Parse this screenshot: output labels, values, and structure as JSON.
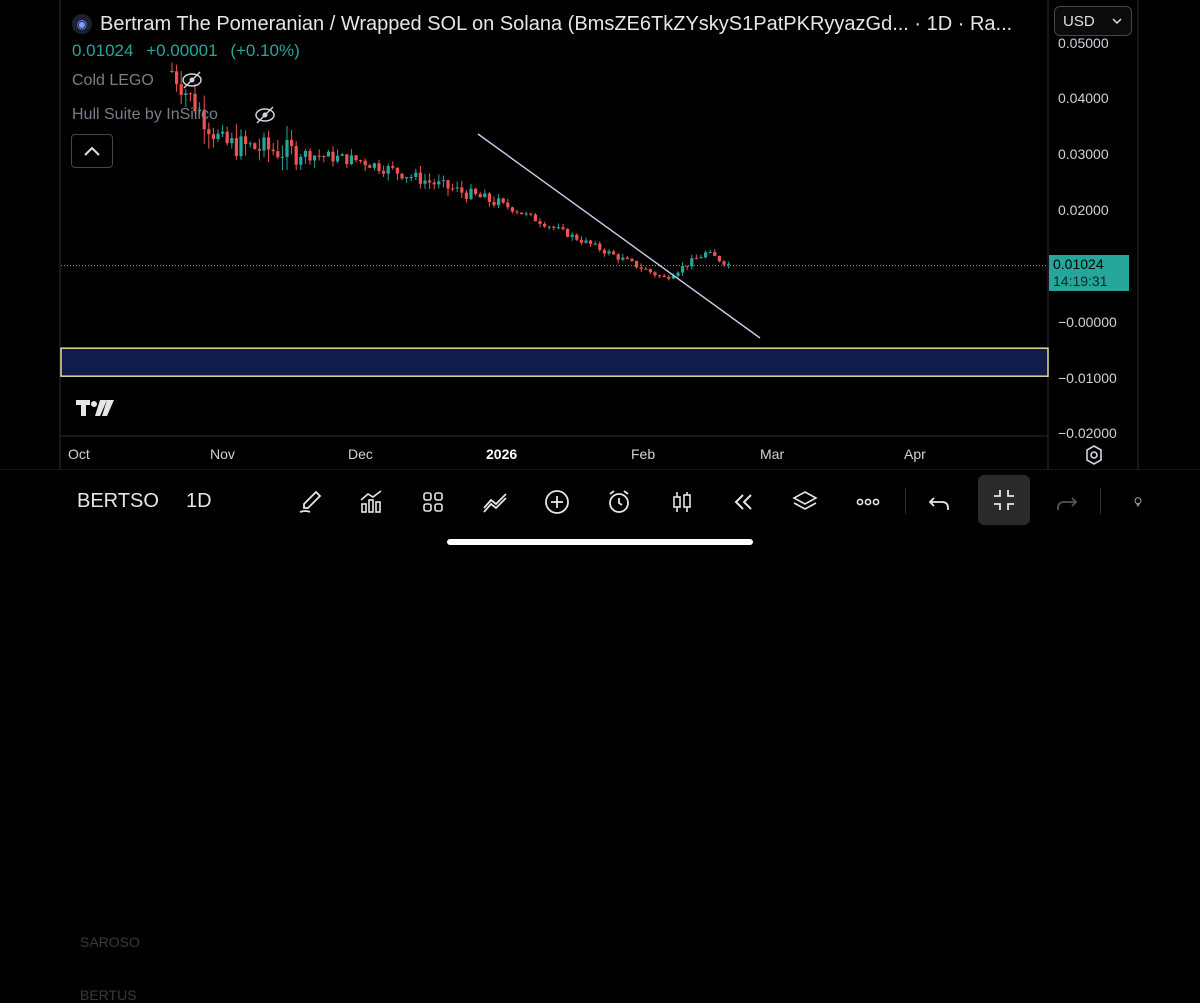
{
  "header": {
    "title": "Bertram The Pomeranian / Wrapped SOL on Solana (BmsZE6TkZYskyS1PatPKRyyazGd... · 1D · Ra...",
    "price": "0.01024",
    "change": "+0.00001",
    "change_pct": "(+0.10%)",
    "currency": "USD"
  },
  "indicators": [
    {
      "label": "Cold LEGO"
    },
    {
      "label": "Hull Suite by InSilico"
    }
  ],
  "price_axis": {
    "ticks": [
      "0.05000",
      "0.04000",
      "0.03000",
      "0.02000",
      "−0.00000",
      "−0.01000",
      "−0.02000"
    ],
    "current_price": "0.01024",
    "countdown": "14:19:31"
  },
  "time_axis": {
    "ticks": [
      "Oct",
      "Nov",
      "Dec",
      "2026",
      "Feb",
      "Mar",
      "Apr"
    ]
  },
  "toolbar": {
    "symbol": "BERTSO",
    "interval": "1D",
    "ghost_above": "SAROSO",
    "ghost_below": "BERTUS"
  },
  "colors": {
    "up": "#26a69a",
    "down": "#ef5350",
    "zone_fill": "#101c4c",
    "zone_border": "#e8d98a",
    "trendline": "#c9cde8"
  },
  "icons": [
    "eye-slash-icon",
    "chevron-up-icon",
    "chevron-down-icon",
    "tradingview-logo-icon",
    "settings-icon",
    "brush-icon",
    "chart-icon",
    "grid-icon",
    "indicator-icon",
    "plus-circle-icon",
    "alarm-icon",
    "candles-icon",
    "rewind-icon",
    "layers-icon",
    "more-icon",
    "undo-icon",
    "collapse-icon",
    "redo-icon",
    "lightbulb-icon"
  ],
  "chart_data": {
    "type": "candlestick",
    "interval": "1D",
    "ylim": [
      -0.02,
      0.05
    ],
    "x_range": [
      "Oct",
      "Apr"
    ],
    "last_price": 0.01024,
    "candles_approx": [
      {
        "x": "Oct",
        "y": 0.045
      },
      {
        "x": "Nov",
        "y": 0.032
      },
      {
        "x": "Dec",
        "y": 0.029
      },
      {
        "x": "2026",
        "y": 0.021
      },
      {
        "x": "Feb",
        "y": 0.008
      },
      {
        "x": "Feb",
        "y": 0.0125
      },
      {
        "x": "Mar",
        "y": 0.01024
      }
    ],
    "zone": [
      -0.0095,
      -0.0045
    ]
  }
}
